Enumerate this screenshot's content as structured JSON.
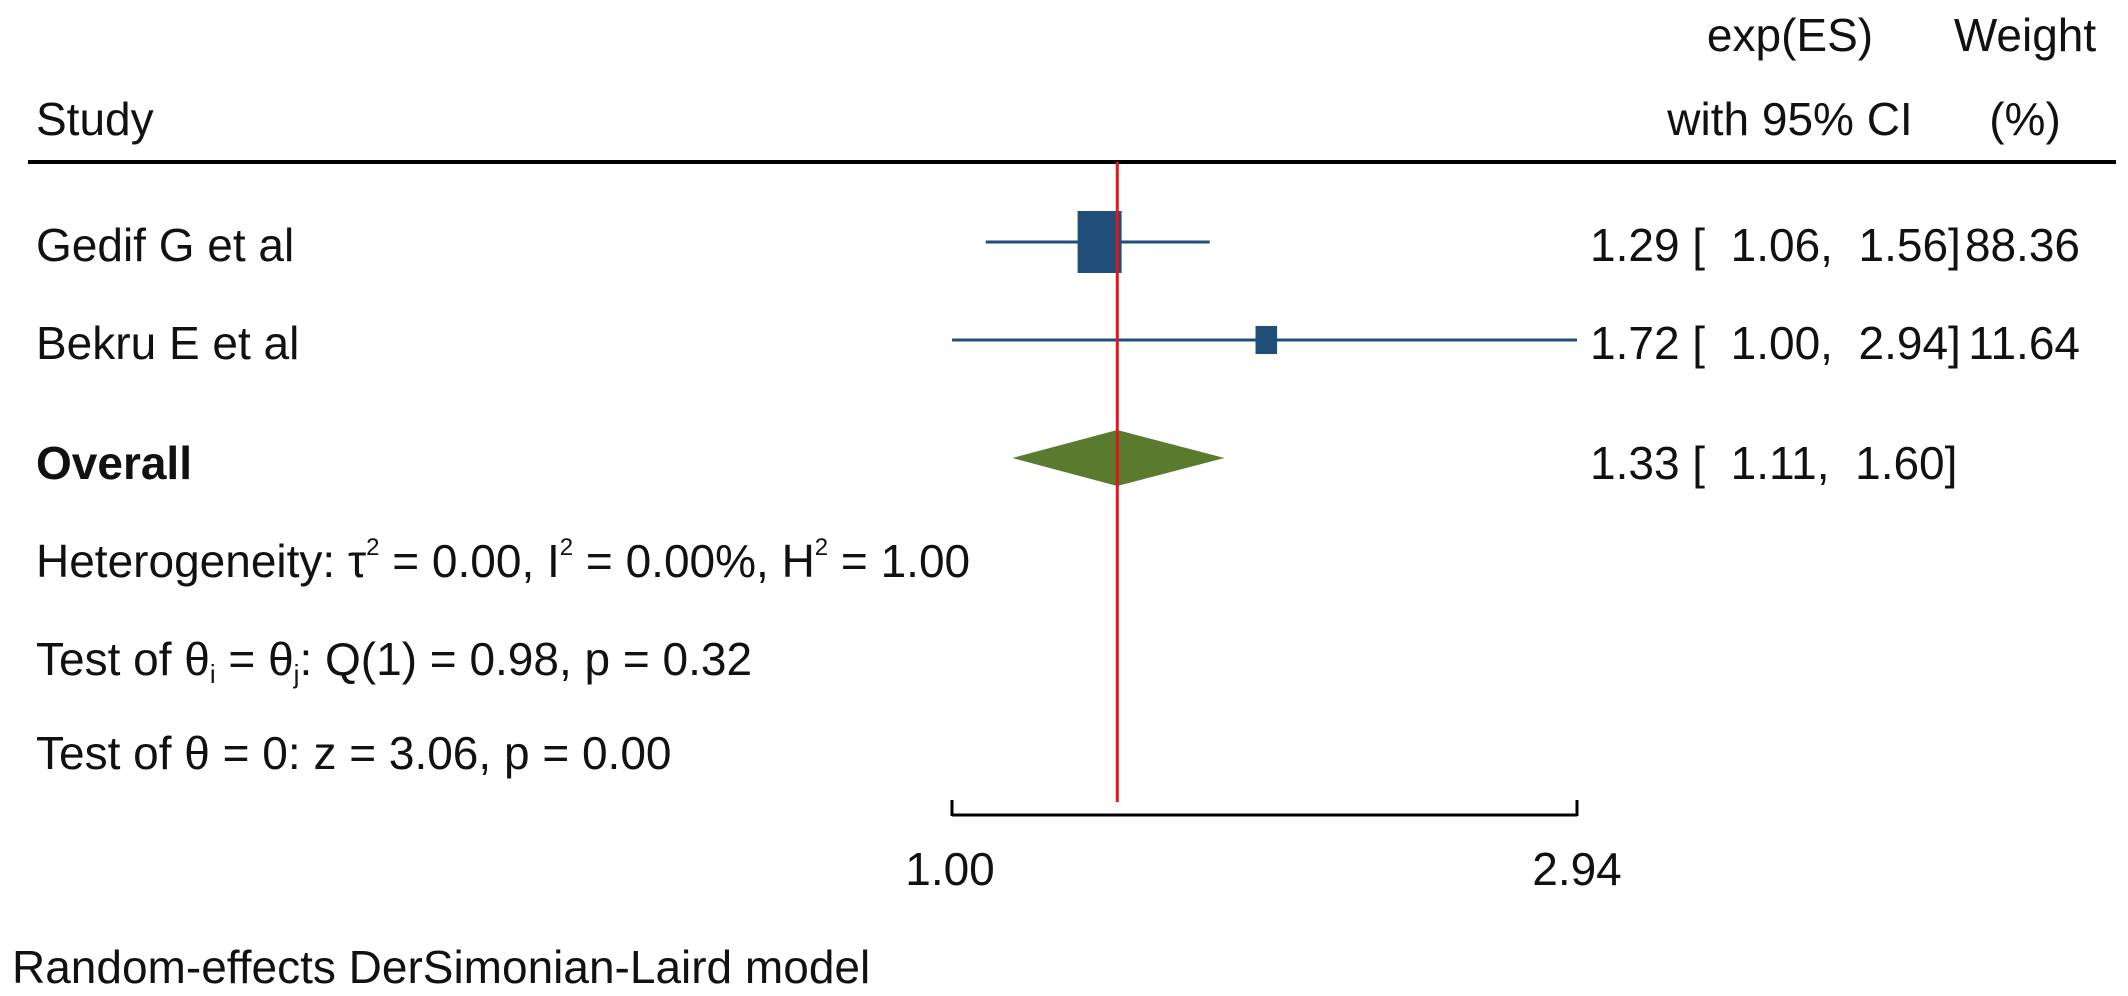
{
  "chart_data": {
    "type": "forest",
    "header": {
      "study": "Study",
      "es_line1": "exp(ES)",
      "es_line2": "with 95% CI",
      "weight_line1": "Weight",
      "weight_line2": "(%)"
    },
    "studies": [
      {
        "name": "Gedif G et al",
        "es": 1.29,
        "lower": 1.06,
        "upper": 1.56,
        "weight": 88.36,
        "es_text": "1.29 [  1.06,  1.56]",
        "weight_text": "88.36"
      },
      {
        "name": "Bekru E et al",
        "es": 1.72,
        "lower": 1.0,
        "upper": 2.94,
        "weight": 11.64,
        "es_text": "1.72 [  1.00,  2.94]",
        "weight_text": "11.64"
      }
    ],
    "overall": {
      "label": "Overall",
      "es": 1.33,
      "lower": 1.11,
      "upper": 1.6,
      "es_text": "1.33 [  1.11,  1.60]"
    },
    "heterogeneity": {
      "prefix": "Heterogeneity: τ",
      "tau_part": " = 0.00, I",
      "i_part": " = 0.00%, H",
      "h_part": " = 1.00",
      "sup": "2"
    },
    "test_q": {
      "pre": "Test of θ",
      "sub_i": "i",
      "mid": " = θ",
      "sub_j": "j",
      "post": ": Q(1) = 0.98, p = 0.32"
    },
    "test_z": "Test of θ = 0: z = 3.06, p = 0.00",
    "x_axis": {
      "scale": "log",
      "range": [
        1.0,
        2.94
      ],
      "ticks": [
        1.0,
        2.94
      ],
      "tick_labels": [
        "1.00",
        "2.94"
      ]
    },
    "reference_line": 1.33,
    "model_note": "Random-effects DerSimonian-Laird model",
    "colors": {
      "study_marker": "#1f4e79",
      "overall_diamond": "#5a7a2e",
      "reference_line": "#e0161d",
      "text": "#111111"
    }
  }
}
